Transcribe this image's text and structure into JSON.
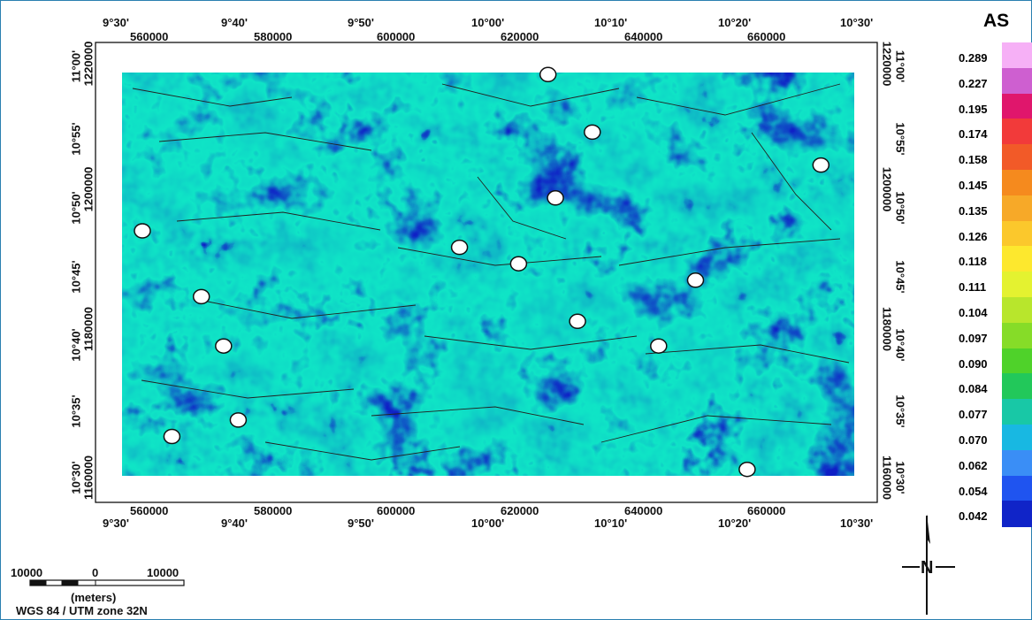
{
  "top_deg_labels": [
    "9°30'",
    "9°40'",
    "9°50'",
    "10°00'",
    "10°10'",
    "10°20'",
    "10°30'"
  ],
  "top_utm_labels": [
    "560000",
    "580000",
    "600000",
    "620000",
    "640000",
    "660000"
  ],
  "bottom_utm_labels": [
    "560000",
    "580000",
    "600000",
    "620000",
    "640000",
    "660000"
  ],
  "bottom_deg_labels": [
    "9°30'",
    "9°40'",
    "9°50'",
    "10°00'",
    "10°10'",
    "10°20'",
    "10°30'"
  ],
  "left_deg_labels": [
    "11°00'",
    "10°55'",
    "10°50'",
    "10°45'",
    "10°40'",
    "10°35'",
    "10°30'"
  ],
  "left_utm_labels": [
    "1220000",
    "1200000",
    "1180000",
    "1160000"
  ],
  "right_deg_labels": [
    "11°00'",
    "10°55'",
    "10°50'",
    "10°45'",
    "10°40'",
    "10°35'",
    "10°30'"
  ],
  "right_utm_labels": [
    "1220000",
    "1200000",
    "1180000",
    "1160000"
  ],
  "legend": {
    "title": "AS",
    "values": [
      "0.289",
      "0.227",
      "0.195",
      "0.174",
      "0.158",
      "0.145",
      "0.135",
      "0.126",
      "0.118",
      "0.111",
      "0.104",
      "0.097",
      "0.090",
      "0.084",
      "0.077",
      "0.070",
      "0.062",
      "0.054",
      "0.042"
    ],
    "colors": [
      "#f6b0f6",
      "#ce5fd0",
      "#e0166c",
      "#f23a3a",
      "#f25a28",
      "#f58a1e",
      "#f7a928",
      "#fbc82c",
      "#fde82e",
      "#e4f230",
      "#b8e62c",
      "#86dc28",
      "#4fd22a",
      "#22c85a",
      "#18c8a6",
      "#18b8e2",
      "#3a8ef6",
      "#1f54f0",
      "#1024c8"
    ]
  },
  "scale_bar": {
    "labels": [
      "10000",
      "0",
      "10000"
    ],
    "unit": "(meters)",
    "projection": "WGS 84 / UTM zone 32N"
  },
  "north_arrow": {
    "label": "N"
  },
  "sample_points": [
    {
      "lon": 10.08,
      "lat": 10.99
    },
    {
      "lon": 10.14,
      "lat": 10.92
    },
    {
      "lon": 10.45,
      "lat": 10.88
    },
    {
      "lon": 10.09,
      "lat": 10.84
    },
    {
      "lon": 9.53,
      "lat": 10.8
    },
    {
      "lon": 9.96,
      "lat": 10.78
    },
    {
      "lon": 10.04,
      "lat": 10.76
    },
    {
      "lon": 10.28,
      "lat": 10.74
    },
    {
      "lon": 9.61,
      "lat": 10.72
    },
    {
      "lon": 10.12,
      "lat": 10.69
    },
    {
      "lon": 9.64,
      "lat": 10.66
    },
    {
      "lon": 10.23,
      "lat": 10.66
    },
    {
      "lon": 9.66,
      "lat": 10.57
    },
    {
      "lon": 9.57,
      "lat": 10.55
    },
    {
      "lon": 10.35,
      "lat": 10.51
    }
  ]
}
